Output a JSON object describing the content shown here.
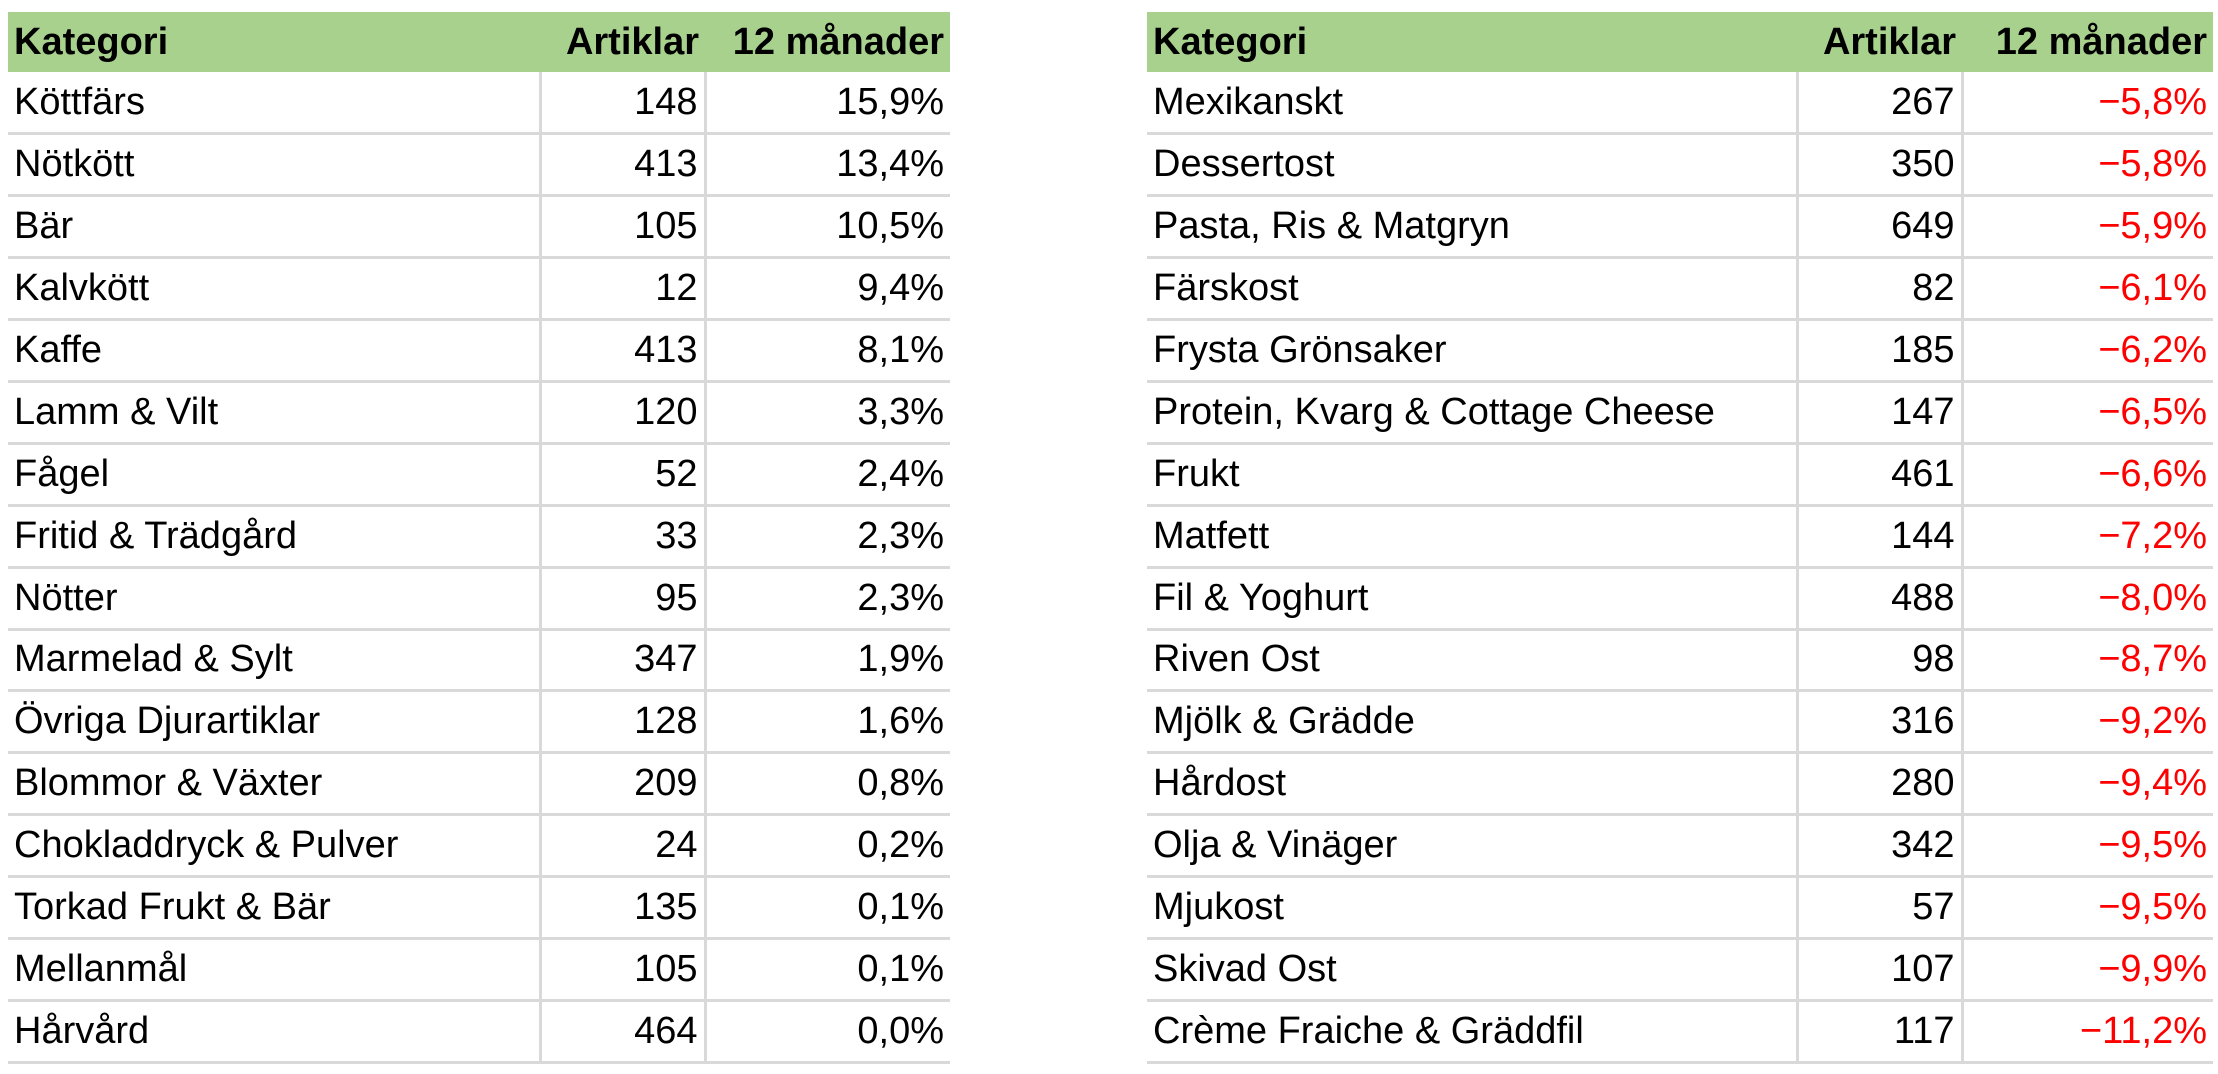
{
  "colors": {
    "header_bg": "#a9d18e",
    "grid": "#d9d9d9",
    "negative": "#ff0000"
  },
  "left_table": {
    "headers": [
      "Kategori",
      "Artiklar",
      "12 månader"
    ],
    "rows": [
      [
        "Köttfärs",
        "148",
        "15,9%"
      ],
      [
        "Nötkött",
        "413",
        "13,4%"
      ],
      [
        "Bär",
        "105",
        "10,5%"
      ],
      [
        "Kalvkött",
        "12",
        "9,4%"
      ],
      [
        "Kaffe",
        "413",
        "8,1%"
      ],
      [
        "Lamm & Vilt",
        "120",
        "3,3%"
      ],
      [
        "Fågel",
        "52",
        "2,4%"
      ],
      [
        "Fritid & Trädgård",
        "33",
        "2,3%"
      ],
      [
        "Nötter",
        "95",
        "2,3%"
      ],
      [
        "Marmelad & Sylt",
        "347",
        "1,9%"
      ],
      [
        "Övriga Djurartiklar",
        "128",
        "1,6%"
      ],
      [
        "Blommor & Växter",
        "209",
        "0,8%"
      ],
      [
        "Chokladdryck & Pulver",
        "24",
        "0,2%"
      ],
      [
        "Torkad Frukt & Bär",
        "135",
        "0,1%"
      ],
      [
        "Mellanmål",
        "105",
        "0,1%"
      ],
      [
        "Hårvård",
        "464",
        "0,0%"
      ]
    ]
  },
  "right_table": {
    "headers": [
      "Kategori",
      "Artiklar",
      "12 månader"
    ],
    "rows": [
      [
        "Mexikanskt",
        "267",
        "−5,8%"
      ],
      [
        "Dessertost",
        "350",
        "−5,8%"
      ],
      [
        "Pasta, Ris & Matgryn",
        "649",
        "−5,9%"
      ],
      [
        "Färskost",
        "82",
        "−6,1%"
      ],
      [
        "Frysta Grönsaker",
        "185",
        "−6,2%"
      ],
      [
        "Protein, Kvarg & Cottage Cheese",
        "147",
        "−6,5%"
      ],
      [
        "Frukt",
        "461",
        "−6,6%"
      ],
      [
        "Matfett",
        "144",
        "−7,2%"
      ],
      [
        "Fil & Yoghurt",
        "488",
        "−8,0%"
      ],
      [
        "Riven Ost",
        "98",
        "−8,7%"
      ],
      [
        "Mjölk & Grädde",
        "316",
        "−9,2%"
      ],
      [
        "Hårdost",
        "280",
        "−9,4%"
      ],
      [
        "Olja & Vinäger",
        "342",
        "−9,5%"
      ],
      [
        "Mjukost",
        "57",
        "−9,5%"
      ],
      [
        "Skivad Ost",
        "107",
        "−9,9%"
      ],
      [
        "Crème Fraiche & Gräddfil",
        "117",
        "−11,2%"
      ]
    ]
  }
}
